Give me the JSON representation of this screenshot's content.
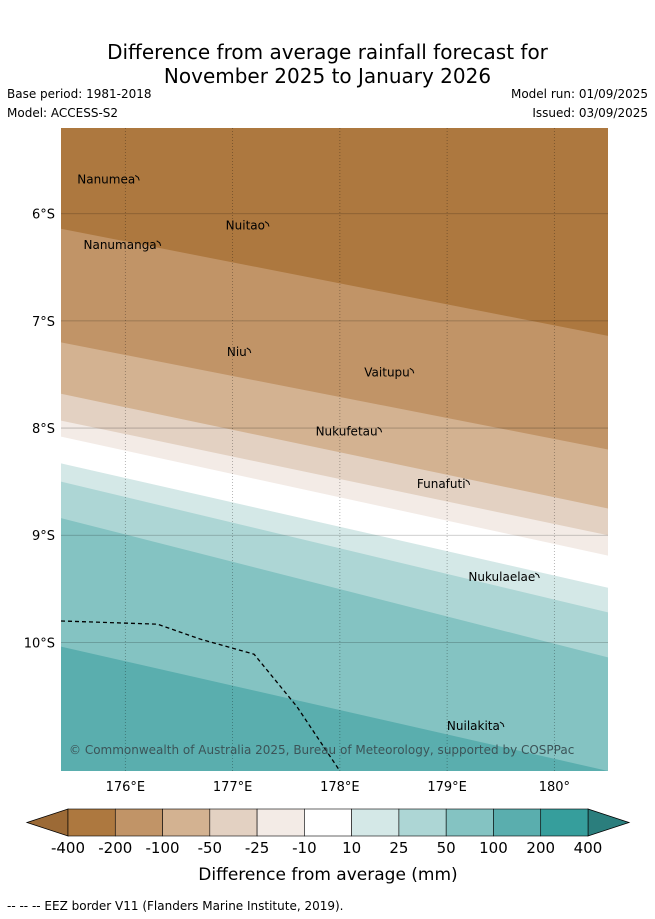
{
  "title": {
    "line1": "Difference from average rainfall forecast for",
    "line2": "November 2025 to January 2026"
  },
  "meta": {
    "base_period": "Base period: 1981-2018",
    "model": "Model: ACCESS-S2",
    "model_run": "Model run: 01/09/2025",
    "issued": "Issued: 03/09/2025"
  },
  "map": {
    "lon_range": [
      175.4,
      180.5
    ],
    "lat_range": [
      -11.2,
      -5.2
    ],
    "x_ticks": [
      {
        "value": 176,
        "label": "176°E"
      },
      {
        "value": 177,
        "label": "177°E"
      },
      {
        "value": 178,
        "label": "178°E"
      },
      {
        "value": 179,
        "label": "179°E"
      },
      {
        "value": 180,
        "label": "180°"
      }
    ],
    "y_ticks": [
      {
        "value": -6,
        "label": "6°S"
      },
      {
        "value": -7,
        "label": "7°S"
      },
      {
        "value": -8,
        "label": "8°S"
      },
      {
        "value": -9,
        "label": "9°S"
      },
      {
        "value": -10,
        "label": "10°S"
      }
    ],
    "islands": [
      {
        "name": "Nanumea",
        "lon": 176.12,
        "lat": -5.68
      },
      {
        "name": "Nuitao",
        "lon": 177.33,
        "lat": -6.11
      },
      {
        "name": "Nanumanga",
        "lon": 176.32,
        "lat": -6.29
      },
      {
        "name": "Niu",
        "lon": 177.16,
        "lat": -7.29
      },
      {
        "name": "Vaitupu",
        "lon": 178.68,
        "lat": -7.48
      },
      {
        "name": "Nukufetau",
        "lon": 178.38,
        "lat": -8.03
      },
      {
        "name": "Funafuti",
        "lon": 179.2,
        "lat": -8.52
      },
      {
        "name": "Nukulaelae",
        "lon": 179.85,
        "lat": -9.39
      },
      {
        "name": "Nuilakita",
        "lon": 179.52,
        "lat": -10.78
      }
    ],
    "copyright": "© Commonwealth of Australia 2025, Bureau of Meteorology, supported by COSPPac",
    "bands": [
      {
        "value": "-400 to -200",
        "color": "#ad783f",
        "left_lat": -5.2,
        "right_lat": -5.2
      },
      {
        "value": "-200 to -100",
        "color": "#c19467",
        "left_lat": -6.14,
        "right_lat": -7.14
      },
      {
        "value": "-100 to -50",
        "color": "#d3b291",
        "left_lat": -7.2,
        "right_lat": -8.2
      },
      {
        "value": "-50 to -25",
        "color": "#e3d1c2",
        "left_lat": -7.68,
        "right_lat": -8.75
      },
      {
        "value": "-25 to -10",
        "color": "#f3ebe6",
        "left_lat": -7.93,
        "right_lat": -9.0
      },
      {
        "value": "-10 to 10",
        "color": "#ffffff",
        "left_lat": -8.08,
        "right_lat": -9.19
      },
      {
        "value": "10 to 25",
        "color": "#d4e8e7",
        "left_lat": -8.33,
        "right_lat": -9.49
      },
      {
        "value": "25 to 50",
        "color": "#add6d5",
        "left_lat": -8.5,
        "right_lat": -9.72
      },
      {
        "value": "50 to 100",
        "color": "#84c3c2",
        "left_lat": -8.84,
        "right_lat": -10.14
      },
      {
        "value": "100 to 200",
        "color": "#5aaeae",
        "left_lat": -10.04,
        "right_lat": -11.2
      }
    ],
    "eez_border": [
      [
        175.4,
        -9.8
      ],
      [
        176.3,
        -9.83
      ],
      [
        176.7,
        -9.97
      ],
      [
        177.2,
        -10.11
      ],
      [
        177.6,
        -10.6
      ],
      [
        178.0,
        -11.2
      ]
    ]
  },
  "colorbar": {
    "colors": [
      "#ad783f",
      "#c19467",
      "#d3b291",
      "#e3d1c2",
      "#f3ebe6",
      "#ffffff",
      "#d4e8e7",
      "#add6d5",
      "#84c3c2",
      "#5aaeae",
      "#369e9c"
    ],
    "extend_low_color": "#9c6a36",
    "extend_high_color": "#2b7e7d",
    "ticks": [
      "-400",
      "-200",
      "-100",
      "-50",
      "-25",
      "-10",
      "10",
      "25",
      "50",
      "100",
      "200",
      "400"
    ],
    "label": "Difference from average (mm)"
  },
  "footer": {
    "legend_text": "-- -- -- EEZ border V11 (Flanders Marine Institute, 2019)."
  }
}
